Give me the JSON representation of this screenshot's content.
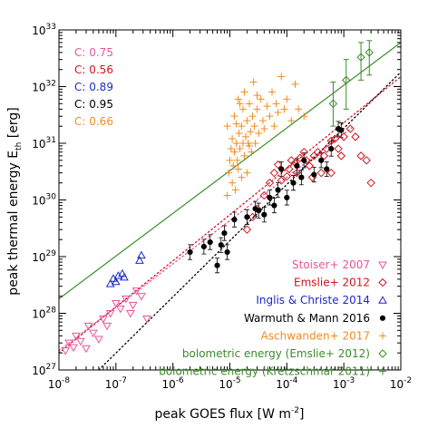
{
  "chart_data": {
    "type": "scatter",
    "title": "",
    "xscale": "log",
    "yscale": "log",
    "xlim": [
      1e-08,
      0.01
    ],
    "ylim": [
      1e+27,
      1e+33
    ],
    "xlabel": {
      "main": "peak GOES flux [W m",
      "sup": "-2",
      "end": "]"
    },
    "ylabel": {
      "main": "peak thermal energy E",
      "sub": "th",
      "end": " [erg]"
    },
    "x_ticks": [
      {
        "value": 1e-08,
        "base": "10",
        "exp": "-8"
      },
      {
        "value": 1e-07,
        "base": "10",
        "exp": "-7"
      },
      {
        "value": 1e-06,
        "base": "10",
        "exp": "-6"
      },
      {
        "value": 1e-05,
        "base": "10",
        "exp": "-5"
      },
      {
        "value": 0.0001,
        "base": "10",
        "exp": "-4"
      },
      {
        "value": 0.001,
        "base": "10",
        "exp": "-3"
      },
      {
        "value": 0.01,
        "base": "10",
        "exp": "-2"
      }
    ],
    "y_ticks": [
      {
        "value": 1e+27,
        "base": "10",
        "exp": "27"
      },
      {
        "value": 1e+28,
        "base": "10",
        "exp": "28"
      },
      {
        "value": 1e+29,
        "base": "10",
        "exp": "29"
      },
      {
        "value": 1e+30,
        "base": "10",
        "exp": "30"
      },
      {
        "value": 1e+31,
        "base": "10",
        "exp": "31"
      },
      {
        "value": 1e+32,
        "base": "10",
        "exp": "32"
      },
      {
        "value": 1e+33,
        "base": "10",
        "exp": "33"
      }
    ],
    "correlations": [
      {
        "text": "C: 0.75",
        "color": "#e8559a"
      },
      {
        "text": "C: 0.56",
        "color": "#d0141e"
      },
      {
        "text": "C: 0.89",
        "color": "#1e28c8"
      },
      {
        "text": "C: 0.95",
        "color": "#000000"
      },
      {
        "text": "C: 0.66",
        "color": "#f08c1e"
      }
    ],
    "legend_position": "bottom-right",
    "series": [
      {
        "name": "Stoiser+ 2007",
        "marker": "triangle-down",
        "color": "#e8559a",
        "points": [
          [
            1.3e-08,
            2.2e+27
          ],
          [
            1.5e-08,
            3e+27
          ],
          [
            1.8e-08,
            2.5e+27
          ],
          [
            2e-08,
            4e+27
          ],
          [
            2.4e-08,
            3.2e+27
          ],
          [
            3e-08,
            2.4e+27
          ],
          [
            3.3e-08,
            6e+27
          ],
          [
            4e-08,
            4.5e+27
          ],
          [
            5e-08,
            3.5e+27
          ],
          [
            6e-08,
            8e+27
          ],
          [
            7e-08,
            6e+27
          ],
          [
            8e-08,
            1e+28
          ],
          [
            1e-07,
            1.5e+28
          ],
          [
            1.2e-07,
            1.2e+28
          ],
          [
            1.5e-07,
            1.8e+28
          ],
          [
            1.8e-07,
            1e+28
          ],
          [
            2e-07,
            1.4e+28
          ],
          [
            2.3e-07,
            2.5e+28
          ],
          [
            2.8e-07,
            2e+28
          ],
          [
            3.5e-07,
            8e+27
          ]
        ]
      },
      {
        "name": "Emslie+ 2012",
        "marker": "diamond",
        "color": "#d0141e",
        "points": [
          [
            2.5e-05,
            5e+29
          ],
          [
            3e-05,
            7e+29
          ],
          [
            4e-05,
            1.2e+30
          ],
          [
            5e-05,
            2e+30
          ],
          [
            6e-05,
            3e+30
          ],
          [
            7e-05,
            4.2e+30
          ],
          [
            8e-05,
            2.2e+30
          ],
          [
            0.0001,
            2.6e+30
          ],
          [
            0.00011,
            3.5e+30
          ],
          [
            0.00012,
            5e+30
          ],
          [
            0.00014,
            4.5e+30
          ],
          [
            0.00015,
            3e+30
          ],
          [
            0.00017,
            5.5e+30
          ],
          [
            0.0002,
            7e+30
          ],
          [
            0.00022,
            5e+30
          ],
          [
            0.00025,
            4e+30
          ],
          [
            0.00028,
            2.5e+30
          ],
          [
            0.0003,
            6e+30
          ],
          [
            0.00035,
            7e+30
          ],
          [
            0.0004,
            3e+30
          ],
          [
            0.00045,
            6e+30
          ],
          [
            0.0005,
            8e+30
          ],
          [
            0.0006,
            1.1e+31
          ],
          [
            0.0007,
            1.2e+31
          ],
          [
            0.0008,
            8e+30
          ],
          [
            0.0009,
            6e+30
          ],
          [
            0.001,
            1.3e+31
          ],
          [
            0.0013,
            1.8e+31
          ],
          [
            0.0016,
            1.3e+31
          ],
          [
            0.002,
            6e+30
          ],
          [
            0.0025,
            5e+30
          ],
          [
            0.003,
            2e+30
          ],
          [
            2e-05,
            3e+29
          ],
          [
            0.0006,
            3e+30
          ]
        ]
      },
      {
        "name": "Inglis & Christe 2014",
        "marker": "triangle-up",
        "color": "#1e28c8",
        "points": [
          [
            8e-08,
            3.3e+28
          ],
          [
            9e-08,
            4.1e+28
          ],
          [
            1e-07,
            3.6e+28
          ],
          [
            1.1e-07,
            4.6e+28
          ],
          [
            1.3e-07,
            5e+28
          ],
          [
            1.4e-07,
            4.3e+28
          ],
          [
            2.6e-07,
            8.5e+28
          ],
          [
            2.8e-07,
            1.05e+29
          ]
        ]
      },
      {
        "name": "Warmuth & Mann 2016",
        "marker": "circle",
        "color": "#000000",
        "points": [
          [
            2e-06,
            1.2e+29
          ],
          [
            3.5e-06,
            1.5e+29
          ],
          [
            4.5e-06,
            1.8e+29
          ],
          [
            6e-06,
            7e+28
          ],
          [
            7e-06,
            1.6e+29
          ],
          [
            8e-06,
            2.6e+29
          ],
          [
            9e-06,
            1.2e+29
          ],
          [
            1.2e-05,
            4.5e+29
          ],
          [
            2e-05,
            5e+29
          ],
          [
            2.8e-05,
            7e+29
          ],
          [
            3.2e-05,
            6.5e+29
          ],
          [
            4e-05,
            5.5e+29
          ],
          [
            5e-05,
            1.1e+30
          ],
          [
            6e-05,
            8e+29
          ],
          [
            7e-05,
            1.5e+30
          ],
          [
            8e-05,
            3.5e+30
          ],
          [
            0.0001,
            1.1e+30
          ],
          [
            0.00013,
            2e+30
          ],
          [
            0.00015,
            4e+30
          ],
          [
            0.00018,
            2.5e+30
          ],
          [
            0.0002,
            5e+30
          ],
          [
            0.0003,
            2.8e+30
          ],
          [
            0.0004,
            5e+30
          ],
          [
            0.0005,
            3.5e+30
          ],
          [
            0.0006,
            8e+30
          ],
          [
            0.0008,
            1.8e+31
          ],
          [
            0.0009,
            1.7e+31
          ]
        ]
      },
      {
        "name": "Aschwanden+ 2017",
        "marker": "plus",
        "color": "#f08c1e",
        "points": [
          [
            9e-06,
            1.2e+30
          ],
          [
            9.5e-06,
            3e+30
          ],
          [
            1e-05,
            5e+30
          ],
          [
            1.05e-05,
            8e+30
          ],
          [
            1.1e-05,
            2e+30
          ],
          [
            1.1e-05,
            1.2e+31
          ],
          [
            1.15e-05,
            4e+30
          ],
          [
            1.2e-05,
            7e+30
          ],
          [
            1.2e-05,
            3e+31
          ],
          [
            1.25e-05,
            1.5e+30
          ],
          [
            1.3e-05,
            1e+31
          ],
          [
            1.3e-05,
            2.2e+31
          ],
          [
            1.35e-05,
            5e+30
          ],
          [
            1.4e-05,
            3.5e+30
          ],
          [
            1.45e-05,
            1.5e+31
          ],
          [
            1.5e-05,
            8e+30
          ],
          [
            1.5e-05,
            5e+31
          ],
          [
            1.6e-05,
            2.5e+30
          ],
          [
            1.6e-05,
            2e+31
          ],
          [
            1.7e-05,
            1e+31
          ],
          [
            1.7e-05,
            4e+31
          ],
          [
            1.8e-05,
            6e+30
          ],
          [
            1.8e-05,
            8e+31
          ],
          [
            1.9e-05,
            1.3e+31
          ],
          [
            2e-05,
            3e+30
          ],
          [
            2e-05,
            2.5e+31
          ],
          [
            2.1e-05,
            1e+31
          ],
          [
            2.2e-05,
            5e+31
          ],
          [
            2.3e-05,
            1.6e+31
          ],
          [
            2.4e-05,
            7e+30
          ],
          [
            2.5e-05,
            3e+31
          ],
          [
            2.6e-05,
            1.2e+32
          ],
          [
            2.7e-05,
            2e+31
          ],
          [
            2.8e-05,
            1e+31
          ],
          [
            3e-05,
            4e+31
          ],
          [
            3.2e-05,
            1.5e+31
          ],
          [
            3.5e-05,
            6e+31
          ],
          [
            3.8e-05,
            2.5e+31
          ],
          [
            4e-05,
            1.8e+31
          ],
          [
            4.5e-05,
            4.5e+31
          ],
          [
            5e-05,
            3e+31
          ],
          [
            5.5e-05,
            8e+31
          ],
          [
            6e-05,
            2e+31
          ],
          [
            6.5e-05,
            5e+31
          ],
          [
            7e-05,
            3.5e+31
          ],
          [
            8e-05,
            1.5e+32
          ],
          [
            9e-05,
            4e+31
          ],
          [
            0.0001,
            6e+31
          ],
          [
            0.00012,
            2.5e+31
          ],
          [
            0.00014,
            1.1e+32
          ],
          [
            0.00016,
            4e+31
          ],
          [
            0.0002,
            3e+31
          ],
          [
            9e-06,
            2e+31
          ],
          [
            1.4e-05,
            6e+31
          ],
          [
            2.2e-05,
            9e+30
          ],
          [
            3e-05,
            7e+31
          ]
        ]
      },
      {
        "name": "bolometric energy (Emslie+ 2012)",
        "marker": "diamond",
        "color": "#3c8c28",
        "points": [
          [
            0.00065,
            5e+31
          ],
          [
            0.0011,
            1.3e+32
          ],
          [
            0.002,
            3.3e+32
          ],
          [
            0.0028,
            4e+32
          ]
        ],
        "errors": [
          [
            2e+31,
            1.2e+32
          ],
          [
            4e+31,
            3e+32
          ],
          [
            1.3e+32,
            6e+32
          ],
          [
            1.6e+32,
            6.5e+32
          ]
        ]
      },
      {
        "name": "bolometric energy (Kretzschmar 2011)",
        "marker": "plus",
        "color": "#3c8c28",
        "points": []
      }
    ],
    "fit_lines": [
      {
        "color": "#3c8c28",
        "style": "solid",
        "from": [
          1e-08,
          1.8e+28
        ],
        "to": [
          0.01,
          6e+32
        ]
      },
      {
        "color": "#e8559a",
        "style": "dotted",
        "from": [
          1e-08,
          2.2e+27
        ],
        "to": [
          0.0015,
          2e+31
        ]
      },
      {
        "color": "#d0141e",
        "style": "dotted",
        "from": [
          1e-08,
          2e+27
        ],
        "to": [
          0.01,
          1.5e+32
        ]
      },
      {
        "color": "#000000",
        "style": "dotted",
        "from": [
          5e-08,
          1e+27
        ],
        "to": [
          0.01,
          1.8e+32
        ]
      }
    ]
  }
}
